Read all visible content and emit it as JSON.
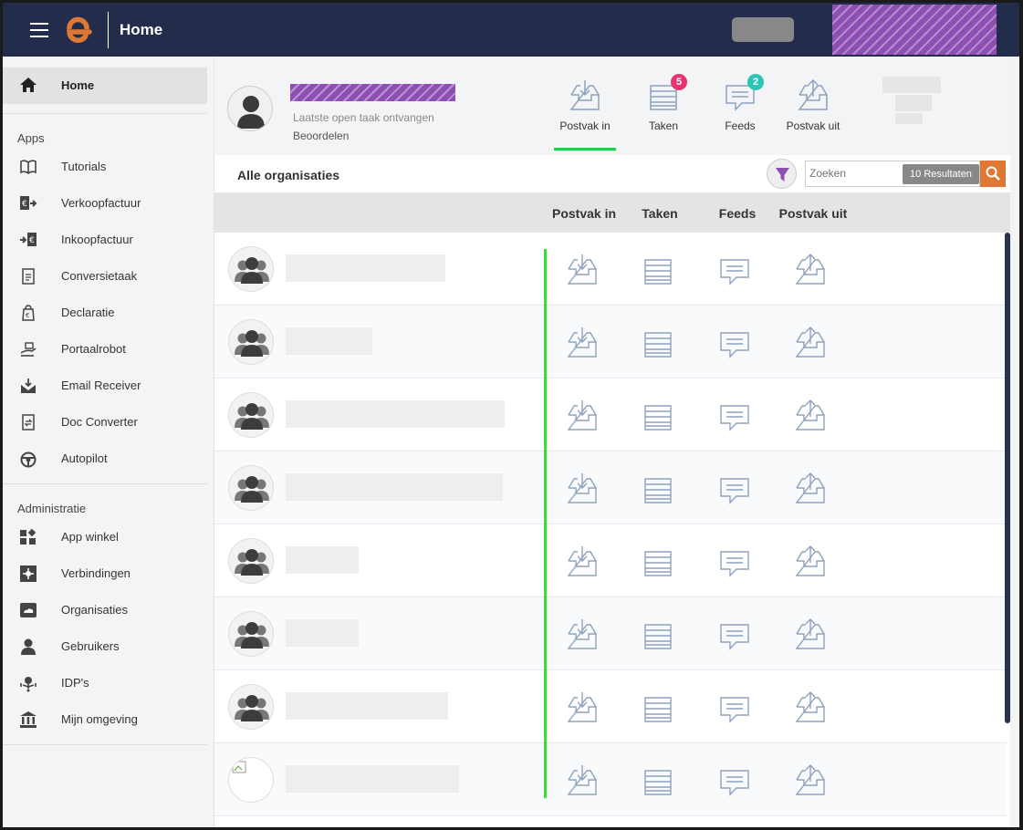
{
  "app": {
    "title": "Home",
    "brand_color": "#e07835",
    "header_color": "#232c4b"
  },
  "sidebar": {
    "home": {
      "label": "Home",
      "icon": "home-icon"
    },
    "apps_section": "Apps",
    "apps": [
      {
        "label": "Tutorials",
        "icon": "book-icon"
      },
      {
        "label": "Verkoopfactuur",
        "icon": "sales-invoice-icon"
      },
      {
        "label": "Inkoopfactuur",
        "icon": "purchase-invoice-icon"
      },
      {
        "label": "Conversietaak",
        "icon": "conversion-icon"
      },
      {
        "label": "Declaratie",
        "icon": "declaration-icon"
      },
      {
        "label": "Portaalrobot",
        "icon": "robot-icon"
      },
      {
        "label": "Email Receiver",
        "icon": "email-icon"
      },
      {
        "label": "Doc Converter",
        "icon": "doc-converter-icon"
      },
      {
        "label": "Autopilot",
        "icon": "autopilot-icon"
      }
    ],
    "admin_section": "Administratie",
    "admin": [
      {
        "label": "App winkel",
        "icon": "app-store-icon"
      },
      {
        "label": "Verbindingen",
        "icon": "connections-icon"
      },
      {
        "label": "Organisaties",
        "icon": "organisations-icon"
      },
      {
        "label": "Gebruikers",
        "icon": "user-icon"
      },
      {
        "label": "IDP's",
        "icon": "idp-icon"
      },
      {
        "label": "Mijn omgeving",
        "icon": "bank-icon"
      }
    ]
  },
  "profile": {
    "last_task_label": "Laatste open taak ontvangen",
    "last_task_value": "Beoordelen"
  },
  "tabs": [
    {
      "label": "Postvak in",
      "icon": "inbox-icon",
      "count": null,
      "active": true
    },
    {
      "label": "Taken",
      "icon": "tasks-icon",
      "count": "5",
      "badge_color": "#e8336e"
    },
    {
      "label": "Feeds",
      "icon": "feeds-icon",
      "count": "2",
      "badge_color": "#2cc5b5"
    },
    {
      "label": "Postvak uit",
      "icon": "outbox-icon",
      "count": null
    }
  ],
  "filter": {
    "title": "Alle organisaties",
    "search_placeholder": "Zoeken",
    "results": "10 Resultaten"
  },
  "table": {
    "columns": [
      "Postvak in",
      "Taken",
      "Feeds",
      "Postvak uit"
    ],
    "row_count": 8
  }
}
